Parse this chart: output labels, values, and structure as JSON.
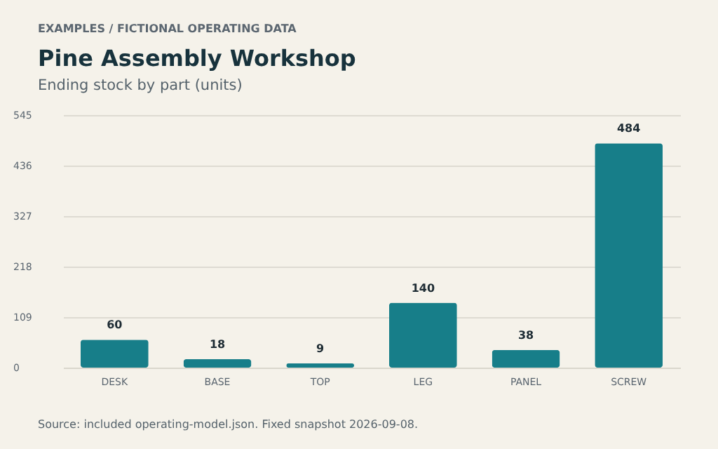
{
  "chart_data": {
    "type": "bar",
    "title": "Pine Assembly Workshop",
    "subtitle": "Ending stock by part (units)",
    "annotations": [
      "EXAMPLES  /  FICTIONAL OPERATING DATA",
      "Source: included operating-model.json. Fixed snapshot 2026-09-08."
    ],
    "categories": [
      "DESK",
      "BASE",
      "TOP",
      "LEG",
      "PANEL",
      "SCREW"
    ],
    "values": [
      60,
      18,
      9,
      140,
      38,
      484
    ],
    "color": "#177e89",
    "ylim": [
      0,
      545
    ],
    "yticks": [
      0,
      109,
      218,
      327,
      436,
      545
    ],
    "grid": "y",
    "data_labels": true
  }
}
